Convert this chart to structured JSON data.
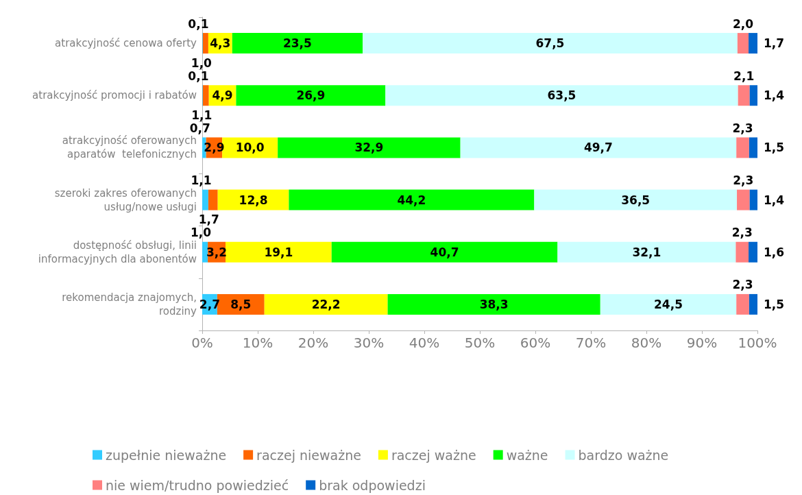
{
  "chart_data": {
    "type": "bar",
    "orientation": "horizontal",
    "stacked": true,
    "grid": false,
    "legend": "bottom",
    "categories": [
      "atrakcyjność cenowa oferty",
      "atrakcyjność promocji i rabatów",
      "atrakcyjność oferowanych\naparatów  telefonicznych",
      "szeroki zakres oferowanych\nusług/nowe usługi",
      "dostępność obsługi, linii\ninformacyjnych dla abonentów",
      "rekomendacja znajomych,\nrodziny"
    ],
    "xlim": [
      0,
      100
    ],
    "xticks": [
      {
        "value": 0,
        "label": "0%"
      },
      {
        "value": 10,
        "label": "10%"
      },
      {
        "value": 20,
        "label": "20%"
      },
      {
        "value": 30,
        "label": "30%"
      },
      {
        "value": 40,
        "label": "40%"
      },
      {
        "value": 50,
        "label": "50%"
      },
      {
        "value": 60,
        "label": "60%"
      },
      {
        "value": 70,
        "label": "70%"
      },
      {
        "value": 80,
        "label": "80%"
      },
      {
        "value": 90,
        "label": "90%"
      },
      {
        "value": 100,
        "label": "100%"
      }
    ],
    "series": [
      {
        "name": "zupełnie nieważne",
        "color": "#33ccff",
        "values": [
          0.1,
          0.1,
          0.7,
          1.1,
          1.0,
          2.7
        ],
        "value_labels": [
          "0,1",
          "0,1",
          "0,7",
          "1,1",
          "1,0",
          "2,7"
        ]
      },
      {
        "name": "raczej nieważne",
        "color": "#ff6600",
        "values": [
          1.0,
          1.1,
          2.9,
          1.7,
          3.2,
          8.5
        ],
        "value_labels": [
          "1,0",
          "1,1",
          "2,9",
          "1,7",
          "3,2",
          "8,5"
        ]
      },
      {
        "name": "raczej ważne",
        "color": "#ffff00",
        "values": [
          4.3,
          4.9,
          10.0,
          12.8,
          19.1,
          22.2
        ],
        "value_labels": [
          "4,3",
          "4,9",
          "10,0",
          "12,8",
          "19,1",
          "22,2"
        ]
      },
      {
        "name": "ważne",
        "color": "#00ff00",
        "values": [
          23.5,
          26.9,
          32.9,
          44.2,
          40.7,
          38.3
        ],
        "value_labels": [
          "23,5",
          "26,9",
          "32,9",
          "44,2",
          "40,7",
          "38,3"
        ]
      },
      {
        "name": "bardzo ważne",
        "color": "#ccffff",
        "values": [
          67.5,
          63.5,
          49.7,
          36.5,
          32.1,
          24.5
        ],
        "value_labels": [
          "67,5",
          "63,5",
          "49,7",
          "36,5",
          "32,1",
          "24,5"
        ]
      },
      {
        "name": "nie wiem/trudno powiedzieć",
        "color": "#ff8080",
        "values": [
          2.0,
          2.1,
          2.3,
          2.3,
          2.3,
          2.3
        ],
        "value_labels": [
          "2,0",
          "2,1",
          "2,3",
          "2,3",
          "2,3",
          "2,3"
        ]
      },
      {
        "name": "brak odpowiedzi",
        "color": "#0066cc",
        "values": [
          1.7,
          1.4,
          1.5,
          1.4,
          1.6,
          1.5
        ],
        "value_labels": [
          "1,7",
          "1,4",
          "1,5",
          "1,4",
          "1,6",
          "1,5"
        ]
      }
    ]
  }
}
